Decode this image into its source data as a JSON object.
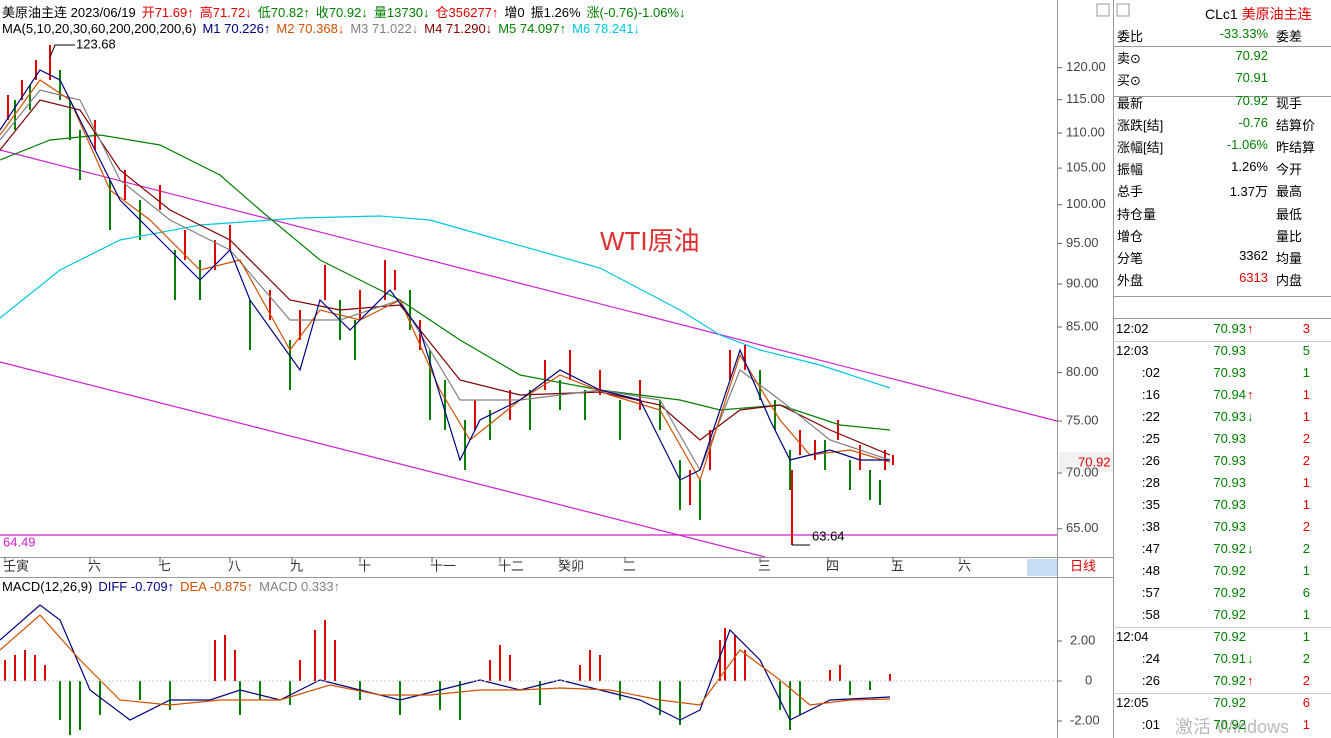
{
  "info_bar": [
    {
      "text": "美原油主连 2023/06/19",
      "color": "#000000"
    },
    {
      "text": "开71.69↑",
      "color": "#e00000"
    },
    {
      "text": "高71.72↓",
      "color": "#e00000"
    },
    {
      "text": "低70.82↑",
      "color": "#008000"
    },
    {
      "text": "收70.92↓",
      "color": "#008000"
    },
    {
      "text": "量13730↓",
      "color": "#008000"
    },
    {
      "text": "仓356277↑",
      "color": "#e00000"
    },
    {
      "text": "增0",
      "color": "#000000"
    },
    {
      "text": "振1.26%",
      "color": "#000000"
    },
    {
      "text": "涨(-0.76)-1.06%↓",
      "color": "#008000"
    }
  ],
  "ma_bar": [
    {
      "text": "MA(5,10,20,30,60,200,200,200,6)",
      "color": "#000000"
    },
    {
      "text": "M1 70.226↑",
      "color": "#000080"
    },
    {
      "text": "M2 70.368↓",
      "color": "#d05000"
    },
    {
      "text": "M3 71.022↓",
      "color": "#808080"
    },
    {
      "text": "M4 71.290↓",
      "color": "#800000"
    },
    {
      "text": "M5 74.097↑",
      "color": "#008000"
    },
    {
      "text": "M6 78.241↓",
      "color": "#00c8e0"
    }
  ],
  "annotation": "WTI原油",
  "high_label": "123.68",
  "low_label": "63.64",
  "left_level": "64.49",
  "last_price": "70.92",
  "price_axis": {
    "log": true,
    "ylim": [
      62.6,
      131.3
    ],
    "yticks": [
      {
        "value": 65,
        "label": "65.00"
      },
      {
        "value": 70,
        "label": "70.00"
      },
      {
        "value": 75,
        "label": "75.00"
      },
      {
        "value": 80,
        "label": "80.00"
      },
      {
        "value": 85,
        "label": "85.00"
      },
      {
        "value": 90,
        "label": "90.00"
      },
      {
        "value": 95,
        "label": "95.00"
      },
      {
        "value": 100,
        "label": "100.00"
      },
      {
        "value": 105,
        "label": "105.00"
      },
      {
        "value": 110,
        "label": "110.00"
      },
      {
        "value": 115,
        "label": "115.00"
      },
      {
        "value": 120,
        "label": "120.00"
      }
    ]
  },
  "x_labels": [
    "壬寅",
    "六",
    "七",
    "八",
    "九",
    "十",
    "十一",
    "十二",
    "癸卯",
    "二",
    "三",
    "四",
    "五",
    "六"
  ],
  "period": "日线",
  "macd": {
    "title": [
      {
        "text": "MACD(12,26,9)",
        "color": "#000000"
      },
      {
        "text": "DIFF -0.709↑",
        "color": "#000080"
      },
      {
        "text": "DEA -0.875↑",
        "color": "#d05000"
      },
      {
        "text": "MACD 0.333↑",
        "color": "#808080"
      }
    ],
    "ylim": [
      -2.85,
      5.2
    ],
    "yticks": [
      {
        "value": 2,
        "label": "2.00"
      },
      0,
      {
        "value": -2,
        "label": "-2.00"
      }
    ]
  },
  "panel": {
    "code": "CLc1",
    "name": "美原油主连",
    "quote": [
      {
        "label": "委比",
        "value": "-33.33%",
        "label2": "委差",
        "color": "#008000"
      },
      {
        "label": "卖⊙",
        "value": "70.92",
        "color": "#008000"
      },
      {
        "label": "买⊙",
        "value": "70.91",
        "color": "#008000"
      },
      {
        "label": "最新",
        "value": "70.92",
        "label2": "现手",
        "color": "#008000"
      },
      {
        "label": "涨跌[结]",
        "value": "-0.76",
        "label2": "结算价",
        "color": "#008000"
      },
      {
        "label": "涨幅[结]",
        "value": "-1.06%",
        "label2": "昨结算",
        "color": "#008000"
      },
      {
        "label": "振幅",
        "value": "1.26%",
        "label2": "今开",
        "color": "#000000"
      },
      {
        "label": "总手",
        "value": "1.37万",
        "label2": "最高",
        "color": "#000000"
      },
      {
        "label": "持仓量",
        "label2": "最低",
        "color": "#000000"
      },
      {
        "label": "增仓",
        "label2": "量比",
        "color": "#000000"
      },
      {
        "label": "分笔",
        "value": "3362",
        "label2": "均量",
        "color": "#000000"
      },
      {
        "label": "外盘",
        "value": "6313",
        "label2": "内盘",
        "color": "#e00000"
      }
    ],
    "trades": [
      {
        "time": "12:02",
        "price": "70.93",
        "arrow": "↑",
        "vol": "3",
        "color": "#e00000"
      },
      {
        "time": "12:03",
        "price": "70.93",
        "vol": "5",
        "color": "#008000"
      },
      {
        "time": ":02",
        "price": "70.93",
        "vol": "1",
        "color": "#008000"
      },
      {
        "time": ":16",
        "price": "70.94",
        "arrow": "↑",
        "vol": "1",
        "color": "#e00000"
      },
      {
        "time": ":22",
        "price": "70.93",
        "arrow": "↓",
        "vol": "1",
        "color": "#e00000"
      },
      {
        "time": ":25",
        "price": "70.93",
        "vol": "2",
        "color": "#e00000"
      },
      {
        "time": ":26",
        "price": "70.93",
        "vol": "2",
        "color": "#e00000"
      },
      {
        "time": ":28",
        "price": "70.93",
        "vol": "1",
        "color": "#e00000"
      },
      {
        "time": ":35",
        "price": "70.93",
        "vol": "1",
        "color": "#e00000"
      },
      {
        "time": ":38",
        "price": "70.93",
        "vol": "2",
        "color": "#e00000"
      },
      {
        "time": ":47",
        "price": "70.92",
        "arrow": "↓",
        "vol": "2",
        "color": "#008000"
      },
      {
        "time": ":48",
        "price": "70.92",
        "vol": "1",
        "color": "#008000"
      },
      {
        "time": ":57",
        "price": "70.92",
        "vol": "6",
        "color": "#008000"
      },
      {
        "time": ":58",
        "price": "70.92",
        "vol": "1",
        "color": "#008000"
      },
      {
        "time": "12:04",
        "price": "70.92",
        "vol": "1",
        "color": "#008000"
      },
      {
        "time": ":24",
        "price": "70.91",
        "arrow": "↓",
        "vol": "2",
        "color": "#008000"
      },
      {
        "time": ":26",
        "price": "70.92",
        "arrow": "↑",
        "vol": "2",
        "color": "#e00000"
      },
      {
        "time": "12:05",
        "price": "70.92",
        "vol": "6",
        "color": "#e00000"
      },
      {
        "time": ":01",
        "price": "70.92",
        "vol": "1",
        "color": "#e00000"
      }
    ]
  },
  "watermark": "激活 Windows"
}
